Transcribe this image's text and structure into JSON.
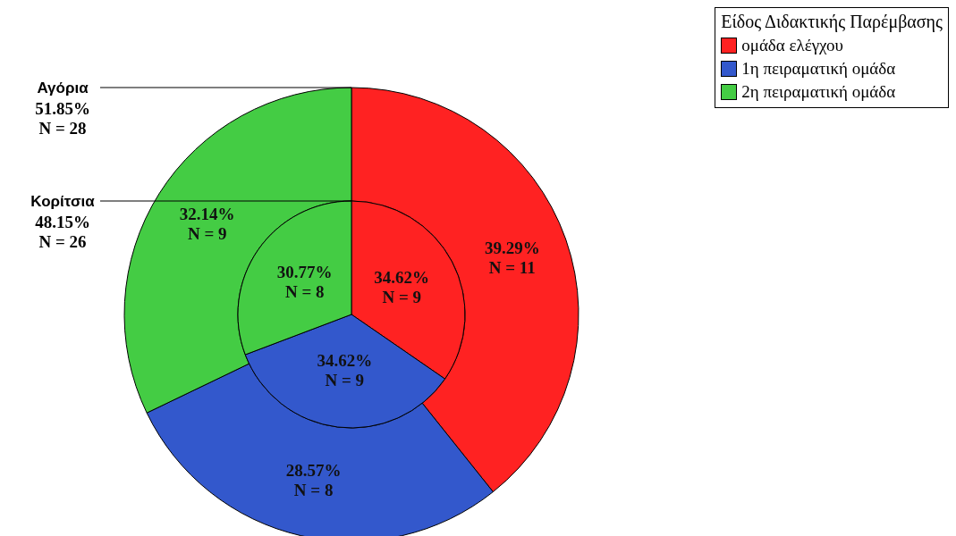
{
  "chart_data": {
    "type": "pie",
    "categories": [
      "ομάδα ελέγχου",
      "1η πειραματική ομάδα",
      "2η πειραματική ομάδα"
    ],
    "colors": [
      "#ff2222",
      "#3358cc",
      "#44cc44"
    ],
    "series": [
      {
        "name": "Αγόρια",
        "values": [
          11,
          8,
          9
        ],
        "value_labels": [
          "39.29%\nN = 11",
          "28.57%\nN = 8",
          "32.14%\nN = 9"
        ]
      },
      {
        "name": "Κορίτσια",
        "values": [
          9,
          9,
          8
        ],
        "value_labels": [
          "34.62%\nN = 9",
          "34.62%\nN = 9",
          "30.77%\nN = 8"
        ]
      }
    ],
    "annotations": [
      "51.85%\nN = 28",
      "48.15%\nN = 26"
    ],
    "legend_title": "Είδος Διδακτικής Παρέμβασης",
    "legend": "top right"
  }
}
